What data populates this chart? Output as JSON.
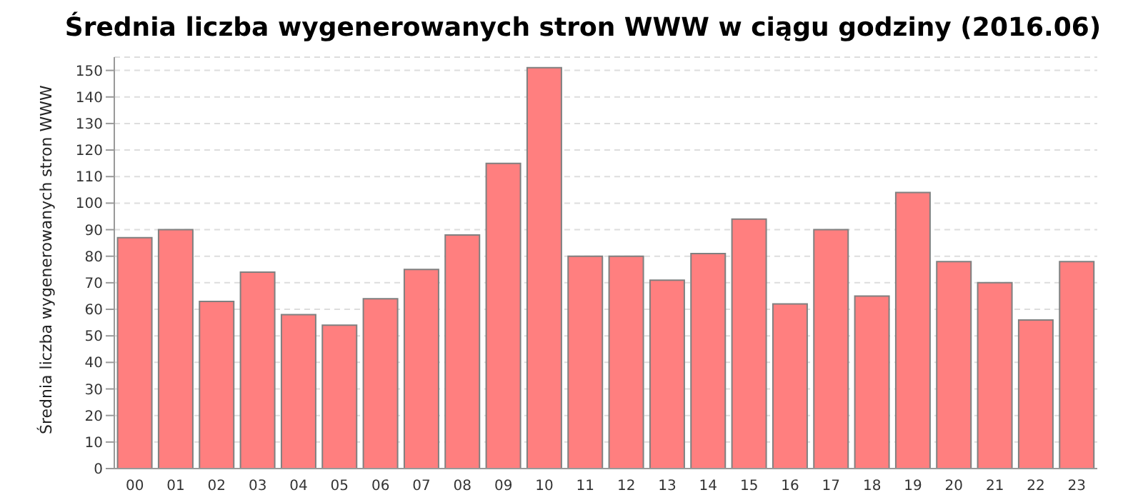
{
  "chart_data": {
    "type": "bar",
    "title": "Średnia liczba wygenerowanych stron WWW w ciągu godziny (2016.06)",
    "ylabel": "Średnia liczba wygenerowanych stron WWW",
    "categories": [
      "00",
      "01",
      "02",
      "03",
      "04",
      "05",
      "06",
      "07",
      "08",
      "09",
      "10",
      "11",
      "12",
      "13",
      "14",
      "15",
      "16",
      "17",
      "18",
      "19",
      "20",
      "21",
      "22",
      "23"
    ],
    "values": [
      87,
      90,
      63,
      74,
      58,
      54,
      64,
      75,
      88,
      115,
      151,
      80,
      80,
      71,
      81,
      94,
      62,
      90,
      65,
      104,
      78,
      70,
      56,
      78
    ],
    "color": "#ff7f7f",
    "ylim": [
      0,
      155
    ],
    "yticks": [
      0,
      10,
      20,
      30,
      40,
      50,
      60,
      70,
      80,
      90,
      100,
      110,
      120,
      130,
      140,
      150
    ],
    "grid": "y",
    "legend": false
  }
}
